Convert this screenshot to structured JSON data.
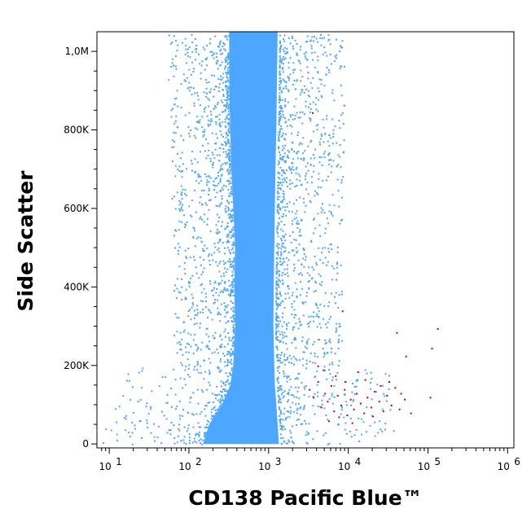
{
  "chart_data": {
    "type": "scatter",
    "subtype": "flow cytometry dot plot",
    "xlabel": "CD138 Pacific Blue™",
    "ylabel": "Side Scatter",
    "x_scale": "log",
    "xlim": [
      7,
      1200000
    ],
    "ylim": [
      -10000,
      1050000
    ],
    "x_ticks": [
      {
        "value": 10,
        "base": "10",
        "exp": "1"
      },
      {
        "value": 100,
        "base": "10",
        "exp": "2"
      },
      {
        "value": 1000,
        "base": "10",
        "exp": "3"
      },
      {
        "value": 10000,
        "base": "10",
        "exp": "4"
      },
      {
        "value": 100000,
        "base": "10",
        "exp": "5"
      },
      {
        "value": 1000000,
        "base": "10",
        "exp": "6"
      }
    ],
    "y_ticks": [
      {
        "value": 0,
        "label": "0"
      },
      {
        "value": 200000,
        "label": "200K"
      },
      {
        "value": 400000,
        "label": "400K"
      },
      {
        "value": 600000,
        "label": "600K"
      },
      {
        "value": 800000,
        "label": "800K"
      },
      {
        "value": 1000000,
        "label": "1,0M"
      }
    ],
    "grid": false,
    "series": [
      {
        "color": "#4da6ff",
        "dense_band": [
          {
            "y": 0,
            "x_lo": 150,
            "x_hi": 1350
          },
          {
            "y": 50000,
            "x_lo": 180,
            "x_hi": 1300
          },
          {
            "y": 100000,
            "x_lo": 260,
            "x_hi": 1250
          },
          {
            "y": 150000,
            "x_lo": 330,
            "x_hi": 1200
          },
          {
            "y": 200000,
            "x_lo": 360,
            "x_hi": 1180
          },
          {
            "y": 300000,
            "x_lo": 380,
            "x_hi": 1150
          },
          {
            "y": 400000,
            "x_lo": 370,
            "x_hi": 1160
          },
          {
            "y": 500000,
            "x_lo": 380,
            "x_hi": 1180
          },
          {
            "y": 600000,
            "x_lo": 360,
            "x_hi": 1200
          },
          {
            "y": 700000,
            "x_lo": 340,
            "x_hi": 1220
          },
          {
            "y": 800000,
            "x_lo": 330,
            "x_hi": 1250
          },
          {
            "y": 900000,
            "x_lo": 320,
            "x_hi": 1270
          },
          {
            "y": 1050000,
            "x_lo": 320,
            "x_hi": 1300
          }
        ]
      },
      {
        "color": "#cc0000",
        "points": [
          [
            3200,
            140000
          ],
          [
            3600,
            120000
          ],
          [
            4100,
            160000
          ],
          [
            4500,
            95000
          ],
          [
            5000,
            130000
          ],
          [
            5400,
            110000
          ],
          [
            6000,
            150000
          ],
          [
            6500,
            85000
          ],
          [
            7200,
            125000
          ],
          [
            8000,
            100000
          ],
          [
            8800,
            140000
          ],
          [
            9500,
            75000
          ],
          [
            10500,
            115000
          ],
          [
            11500,
            90000
          ],
          [
            12500,
            130000
          ],
          [
            14000,
            105000
          ],
          [
            15500,
            80000
          ],
          [
            17000,
            120000
          ],
          [
            19000,
            95000
          ],
          [
            21000,
            135000
          ],
          [
            24000,
            110000
          ],
          [
            27000,
            85000
          ],
          [
            30000,
            125000
          ],
          [
            34000,
            100000
          ],
          [
            38000,
            145000
          ],
          [
            43000,
            90000
          ],
          [
            50000,
            115000
          ],
          [
            60000,
            80000
          ],
          [
            9000,
            160000
          ],
          [
            6800,
            175000
          ],
          [
            4800,
            190000
          ],
          [
            16000,
            165000
          ],
          [
            5600,
            60000
          ],
          [
            11000,
            55000
          ],
          [
            7500,
            70000
          ],
          [
            25000,
            150000
          ],
          [
            13000,
            185000
          ],
          [
            45000,
            130000
          ],
          [
            105000,
            120000
          ],
          [
            110000,
            245000
          ],
          [
            130000,
            295000
          ],
          [
            52000,
            225000
          ],
          [
            40000,
            285000
          ],
          [
            8300,
            340000
          ],
          [
            3500,
            845000
          ],
          [
            4100,
            200000
          ],
          [
            20000,
            72000
          ],
          [
            32000,
            160000
          ]
        ]
      }
    ]
  }
}
